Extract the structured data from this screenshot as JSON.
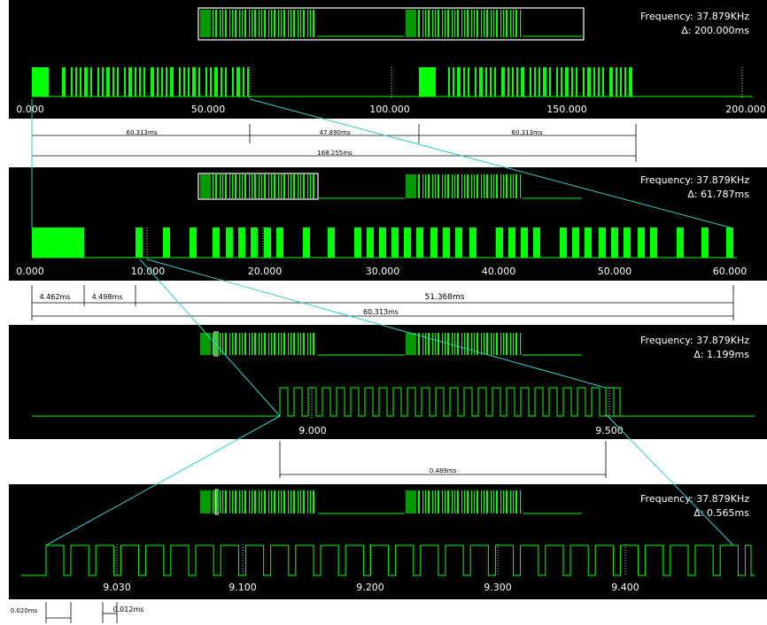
{
  "colors": {
    "panel_bg": "#000000",
    "signal": "#00ff00",
    "signal_dark": "#009900",
    "zoom_link": "#33cccc",
    "grid_dot": "#cccccc",
    "overview_box": "#ffffff",
    "measure": "#000000"
  },
  "panels": [
    {
      "name": "panel-full",
      "info": {
        "frequency": "Frequency: 37.879KHz",
        "delta": "Δ: 200.000ms"
      },
      "ticks": [
        "0.000",
        "50.000",
        "100.000",
        "150.000",
        "200.000"
      ],
      "measures": [
        {
          "row": 1,
          "label": "60.313ms"
        },
        {
          "row": 1,
          "label": "47.890ms"
        },
        {
          "row": 1,
          "label": "60.313ms"
        },
        {
          "row": 2,
          "label": "168.255ms"
        }
      ]
    },
    {
      "name": "panel-burst",
      "info": {
        "frequency": "Frequency: 37.879KHz",
        "delta": "Δ: 61.787ms"
      },
      "ticks": [
        "0.000",
        "10.000",
        "20.000",
        "30.000",
        "40.000",
        "50.000",
        "60.000"
      ],
      "measures": [
        {
          "row": 1,
          "label": "4.462ms"
        },
        {
          "row": 1,
          "label": "4.498ms"
        },
        {
          "row": 1,
          "label": "51.368ms"
        },
        {
          "row": 2,
          "label": "60.313ms"
        }
      ]
    },
    {
      "name": "panel-pulse",
      "info": {
        "frequency": "Frequency: 37.879KHz",
        "delta": "Δ: 1.199ms"
      },
      "ticks": [
        "9.000",
        "9.500"
      ],
      "measures": [
        {
          "row": 1,
          "label": "0.489ms"
        }
      ]
    },
    {
      "name": "panel-carrier",
      "info": {
        "frequency": "Frequency: 37.879KHz",
        "delta": "Δ: 0.565ms"
      },
      "ticks": [
        "9.030",
        "9.100",
        "9.200",
        "9.300",
        "9.400"
      ],
      "measures": [
        {
          "row": 1,
          "label": "0.020ms"
        },
        {
          "row": 1,
          "label": "0.012ms"
        }
      ]
    }
  ]
}
